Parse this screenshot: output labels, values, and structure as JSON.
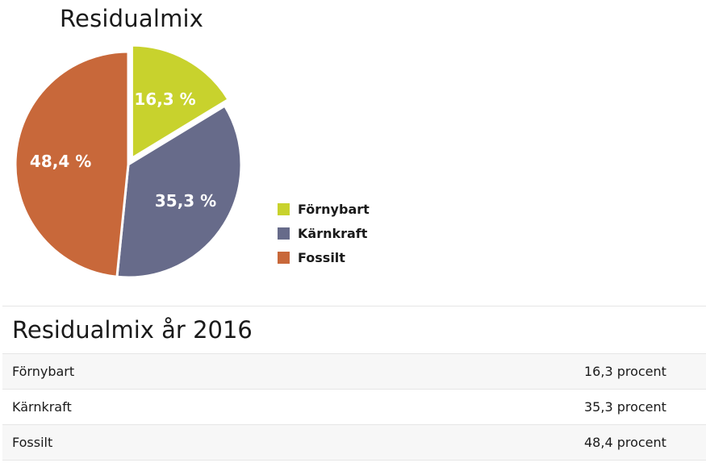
{
  "chart_data": {
    "type": "pie",
    "title": "Residualmix",
    "categories": [
      "Förnybart",
      "Kärnkraft",
      "Fossilt"
    ],
    "values": [
      16.3,
      35.3,
      48.4
    ],
    "slice_labels": [
      "16,3 %",
      "35,3 %",
      "48,4 %"
    ],
    "colors": [
      "#c8d22d",
      "#676b8a",
      "#c8683a"
    ],
    "exploded": [
      "Förnybart"
    ],
    "legend_position": "right"
  },
  "legend": {
    "items": [
      {
        "label": "Förnybart",
        "color": "#c8d22d"
      },
      {
        "label": "Kärnkraft",
        "color": "#676b8a"
      },
      {
        "label": "Fossilt",
        "color": "#c8683a"
      }
    ]
  },
  "table": {
    "heading": "Residualmix år 2016",
    "rows": [
      {
        "name": "Förnybart",
        "value": "16,3 procent"
      },
      {
        "name": "Kärnkraft",
        "value": "35,3 procent"
      },
      {
        "name": "Fossilt",
        "value": "48,4 procent"
      }
    ]
  }
}
